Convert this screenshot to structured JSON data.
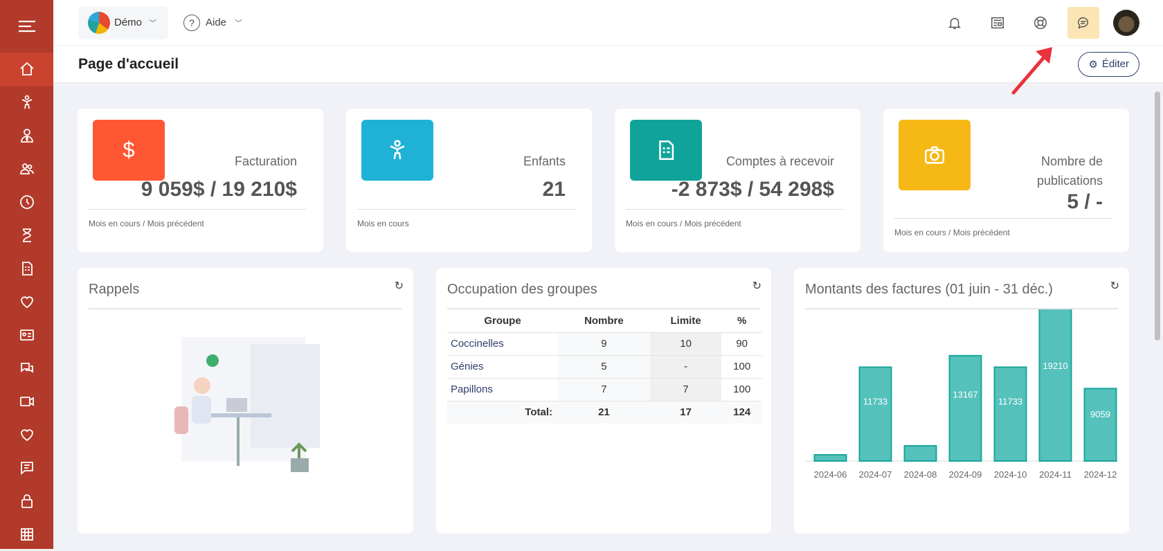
{
  "header": {
    "org": "Démo",
    "help": "Aide"
  },
  "page": {
    "title": "Page d'accueil",
    "edit": "Éditer"
  },
  "sidebar": [
    "home",
    "child",
    "user-tie",
    "users",
    "clock",
    "hourglass",
    "invoice",
    "heart",
    "id-card",
    "chat",
    "video",
    "heart",
    "message",
    "lock",
    "grid"
  ],
  "stats": [
    {
      "label": "Facturation",
      "value": "9 059$ / 19 210$",
      "sub": "Mois en cours / Mois précédent",
      "color": "#ff5733",
      "icon": "dollar-icon"
    },
    {
      "label": "Enfants",
      "value": "21",
      "sub": "Mois en cours",
      "color": "#20b2d6",
      "icon": "child-icon"
    },
    {
      "label": "Comptes à recevoir",
      "value": "-2 873$ / 54 298$",
      "sub": "Mois en cours / Mois précédent",
      "color": "#10a39a",
      "icon": "invoice-icon"
    },
    {
      "label": "Nombre de publications",
      "value": "5 / -",
      "sub": "Mois en cours / Mois précédent",
      "color": "#f5b815",
      "icon": "camera-icon"
    }
  ],
  "reminders": {
    "title": "Rappels"
  },
  "groups": {
    "title": "Occupation des groupes",
    "headers": [
      "Groupe",
      "Nombre",
      "Limite",
      "%"
    ],
    "rows": [
      [
        "Coccinelles",
        "9",
        "10",
        "90"
      ],
      [
        "Génies",
        "5",
        "-",
        "100"
      ],
      [
        "Papillons",
        "7",
        "7",
        "100"
      ]
    ],
    "total": [
      "Total:",
      "21",
      "17",
      "124"
    ]
  },
  "chart_data": {
    "type": "bar",
    "title": "Montants des factures (01 juin - 31 déc.)",
    "categories": [
      "2024-06",
      "2024-07",
      "2024-08",
      "2024-09",
      "2024-10",
      "2024-11",
      "2024-12"
    ],
    "values": [
      780,
      11733,
      1900,
      13167,
      11733,
      19210,
      9059
    ],
    "labels": [
      "",
      "11733",
      "",
      "13167",
      "11733",
      "19210",
      "9059"
    ],
    "color": "#55c1bb",
    "border": "#17a69c",
    "ylim": [
      0,
      19210
    ],
    "grid": false
  }
}
